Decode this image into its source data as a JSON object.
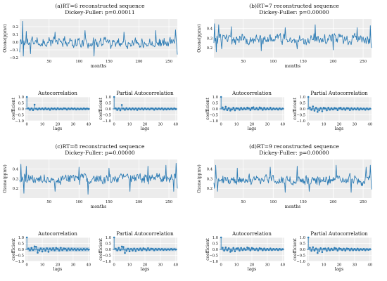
{
  "colors": {
    "line": "#2f7db5",
    "panel_bg": "#ececec",
    "grid": "#ffffff",
    "conf_band": "#aac7de",
    "zero_line": "#2f7db5"
  },
  "chart_data": [
    {
      "type": "line",
      "title": "(a)RT=6 reconstructed sequence",
      "subtitle": "Dickey-Fuller: p=0.00011",
      "xlabel": "months",
      "ylabel": "Ozone(ppmv)",
      "xlim": [
        1,
        264
      ],
      "ylim": [
        -0.2,
        0.3
      ],
      "xticks": [
        50,
        100,
        150,
        200,
        250
      ],
      "yticks": [
        -0.2,
        -0.1,
        0.0,
        0.1,
        0.2
      ],
      "ytick_labels": [
        "−0.2",
        "−0.1",
        "0.0",
        "0.1",
        "0.2"
      ],
      "seed": 11,
      "amp": 0.085,
      "extremes": [
        [
          1,
          -0.13
        ],
        [
          6,
          0.27
        ],
        [
          7,
          -0.18
        ],
        [
          12,
          0.14
        ],
        [
          19,
          -0.15
        ],
        [
          60,
          0.13
        ],
        [
          110,
          0.15
        ],
        [
          125,
          -0.18
        ],
        [
          175,
          0.13
        ],
        [
          228,
          0.15
        ],
        [
          261,
          0.16
        ],
        [
          264,
          -0.16
        ]
      ],
      "acf": {
        "title": "Autocorrelation",
        "xlabel": "lags",
        "ylabel": "coefficient",
        "xticks": [
          0,
          10,
          20,
          30,
          40
        ],
        "yticks": [
          -1.0,
          -0.5,
          0.0,
          0.5,
          1.0
        ],
        "ytick_labels": [
          "−1.0",
          "−0.5",
          "0.0",
          "0.5",
          "1.0"
        ],
        "band": 0.12,
        "values": [
          1.0,
          0.05,
          -0.08,
          0.04,
          -0.1,
          0.35,
          0.02,
          -0.06,
          0.05,
          -0.03,
          0.04,
          -0.05,
          0.06,
          -0.04,
          0.03,
          -0.08,
          0.05,
          -0.02,
          0.04,
          -0.05,
          0.06,
          -0.03,
          0.02,
          -0.04,
          0.05,
          0.03,
          -0.06,
          0.04,
          -0.03,
          0.05,
          -0.02,
          0.04,
          -0.05,
          0.03,
          -0.04,
          0.02,
          -0.03,
          0.04,
          -0.02,
          0.03,
          -0.01
        ]
      },
      "pacf": {
        "title": "Partial Autocorrelation",
        "xlabel": "lags",
        "ylabel": "coefficient",
        "xticks": [
          0,
          10,
          20,
          30,
          40
        ],
        "yticks": [
          -1.0,
          -0.5,
          0.0,
          0.5,
          1.0
        ],
        "ytick_labels": [
          "−1.0",
          "−0.5",
          "0.0",
          "0.5",
          "1.0"
        ],
        "band": 0.12,
        "values": [
          1.0,
          0.05,
          -0.09,
          0.05,
          -0.12,
          0.33,
          0.03,
          -0.08,
          0.06,
          -0.05,
          0.05,
          -0.06,
          0.05,
          -0.06,
          0.04,
          -0.09,
          0.04,
          -0.04,
          0.05,
          -0.06,
          0.05,
          -0.04,
          0.03,
          -0.05,
          0.04,
          0.03,
          -0.07,
          0.05,
          -0.04,
          0.04,
          -0.03,
          0.05,
          -0.06,
          0.03,
          -0.05,
          0.03,
          -0.04,
          0.03,
          -0.03,
          0.04,
          -0.02
        ]
      }
    },
    {
      "type": "line",
      "title": "(b)RT=7 reconstructed sequence",
      "subtitle": "Dickey-Fuller: p=0.00000",
      "xlabel": "months",
      "ylabel": "Ozone(ppmv)",
      "xlim": [
        1,
        264
      ],
      "ylim": [
        0.1,
        0.5
      ],
      "xticks": [
        50,
        100,
        150,
        200,
        250
      ],
      "yticks": [
        0.2,
        0.3,
        0.4
      ],
      "ytick_labels": [
        "0.2",
        "0.3",
        "0.4"
      ],
      "seed": 23,
      "amp": 0.07,
      "base": 0.29,
      "extremes": [
        [
          2,
          0.45
        ],
        [
          5,
          0.16
        ],
        [
          9,
          0.44
        ],
        [
          14,
          0.19
        ],
        [
          30,
          0.42
        ],
        [
          80,
          0.17
        ],
        [
          120,
          0.41
        ],
        [
          140,
          0.19
        ],
        [
          170,
          0.44
        ],
        [
          200,
          0.18
        ],
        [
          240,
          0.41
        ],
        [
          262,
          0.43
        ],
        [
          264,
          0.2
        ]
      ],
      "acf": {
        "title": "Autocorrelation",
        "xlabel": "lags",
        "ylabel": "coefficient",
        "xticks": [
          0,
          10,
          20,
          30,
          40
        ],
        "yticks": [
          -1.0,
          -0.5,
          0.0,
          0.5,
          1.0
        ],
        "ytick_labels": [
          "−1.0",
          "−0.5",
          "0.0",
          "0.5",
          "1.0"
        ],
        "band": 0.12,
        "values": [
          1.0,
          0.12,
          -0.06,
          0.18,
          -0.1,
          0.08,
          -0.14,
          -0.05,
          0.1,
          -0.12,
          0.06,
          0.04,
          -0.08,
          0.09,
          -0.05,
          0.07,
          -0.03,
          0.11,
          0.05,
          -0.09,
          0.1,
          0.14,
          -0.04,
          0.08,
          -0.06,
          0.12,
          0.07,
          -0.08,
          0.09,
          -0.05,
          0.06,
          -0.04,
          0.1,
          -0.06,
          0.05,
          -0.03,
          0.04,
          -0.06,
          0.05,
          -0.04,
          0.03
        ]
      },
      "pacf": {
        "title": "Partial Autocorrelation",
        "xlabel": "lags",
        "ylabel": "coefficient",
        "xticks": [
          0,
          10,
          20,
          30,
          40
        ],
        "yticks": [
          -1.0,
          -0.5,
          0.0,
          0.5,
          1.0
        ],
        "ytick_labels": [
          "−1.0",
          "−0.5",
          "0.0",
          "0.5",
          "1.0"
        ],
        "band": 0.12,
        "values": [
          1.0,
          0.12,
          -0.08,
          0.2,
          -0.15,
          0.1,
          -0.25,
          -0.12,
          0.08,
          -0.2,
          0.1,
          0.05,
          -0.12,
          0.1,
          -0.07,
          0.06,
          -0.05,
          0.08,
          0.04,
          -0.1,
          0.07,
          0.09,
          -0.05,
          0.06,
          -0.08,
          0.07,
          0.05,
          -0.1,
          0.06,
          -0.06,
          0.05,
          -0.05,
          0.07,
          -0.07,
          0.04,
          -0.04,
          0.03,
          -0.07,
          0.04,
          -0.05,
          0.02
        ]
      }
    },
    {
      "type": "line",
      "title": "(c)RT=8 reconstructed sequence",
      "subtitle": "Dickey-Fuller: p=0.00000",
      "xlabel": "months",
      "ylabel": "Ozone(ppmv)",
      "xlim": [
        1,
        264
      ],
      "ylim": [
        0.1,
        0.5
      ],
      "xticks": [
        50,
        100,
        150,
        200,
        250
      ],
      "yticks": [
        0.2,
        0.3,
        0.4
      ],
      "ytick_labels": [
        "0.2",
        "0.3",
        "0.4"
      ],
      "seed": 37,
      "amp": 0.065,
      "base": 0.3,
      "extremes": [
        [
          3,
          0.45
        ],
        [
          8,
          0.15
        ],
        [
          12,
          0.43
        ],
        [
          60,
          0.17
        ],
        [
          100,
          0.42
        ],
        [
          115,
          0.14
        ],
        [
          150,
          0.41
        ],
        [
          185,
          0.17
        ],
        [
          215,
          0.43
        ],
        [
          245,
          0.44
        ],
        [
          258,
          0.17
        ],
        [
          262,
          0.46
        ],
        [
          264,
          0.2
        ]
      ],
      "acf": {
        "title": "Autocorrelation",
        "xlabel": "lags",
        "ylabel": "coefficient",
        "xticks": [
          0,
          10,
          20,
          30,
          40
        ],
        "yticks": [
          -1.0,
          -0.5,
          0.0,
          0.5,
          1.0
        ],
        "ytick_labels": [
          "−1.0",
          "−0.5",
          "0.0",
          "0.5",
          "1.0"
        ],
        "band": 0.18,
        "values": [
          1.0,
          0.06,
          -0.08,
          0.12,
          -0.05,
          0.25,
          0.22,
          -0.28,
          -0.1,
          0.08,
          -0.18,
          0.05,
          -0.12,
          0.09,
          -0.2,
          0.07,
          -0.04,
          0.1,
          -0.08,
          0.12,
          0.04,
          -0.1,
          0.13,
          -0.06,
          0.08,
          0.05,
          -0.09,
          0.07,
          -0.05,
          0.06,
          -0.03,
          0.05,
          -0.06,
          0.04,
          -0.05,
          0.03,
          -0.04,
          0.05,
          -0.03,
          0.04,
          -0.02
        ]
      },
      "pacf": {
        "title": "Partial Autocorrelation",
        "xlabel": "lags",
        "ylabel": "coefficient",
        "xticks": [
          0,
          10,
          20,
          30,
          40
        ],
        "yticks": [
          -1.0,
          -0.5,
          0.0,
          0.5,
          1.0
        ],
        "ytick_labels": [
          "−1.0",
          "−0.5",
          "0.0",
          "0.5",
          "1.0"
        ],
        "band": 0.14,
        "values": [
          1.0,
          0.06,
          -0.09,
          0.13,
          -0.06,
          0.24,
          0.2,
          -0.3,
          -0.12,
          0.06,
          -0.16,
          0.04,
          -0.1,
          0.07,
          -0.14,
          0.05,
          -0.05,
          0.08,
          -0.07,
          0.09,
          0.03,
          -0.08,
          0.1,
          -0.05,
          0.06,
          0.04,
          -0.08,
          0.05,
          -0.04,
          0.05,
          -0.03,
          0.04,
          -0.05,
          0.03,
          -0.04,
          0.02,
          -0.03,
          0.04,
          -0.02,
          0.03,
          -0.01
        ]
      }
    },
    {
      "type": "line",
      "title": "(d)RT=9 reconstructed sequence",
      "subtitle": "Dickey-Fuller: p=0.00000",
      "xlabel": "months",
      "ylabel": "Ozone(ppmv)",
      "xlim": [
        1,
        264
      ],
      "ylim": [
        0.1,
        0.5
      ],
      "xticks": [
        50,
        100,
        150,
        200,
        250
      ],
      "yticks": [
        0.2,
        0.3,
        0.4
      ],
      "ytick_labels": [
        "0.2",
        "0.3",
        "0.4"
      ],
      "seed": 51,
      "amp": 0.065,
      "base": 0.29,
      "extremes": [
        [
          2,
          0.2
        ],
        [
          4,
          0.44
        ],
        [
          7,
          0.17
        ],
        [
          40,
          0.41
        ],
        [
          95,
          0.42
        ],
        [
          120,
          0.16
        ],
        [
          140,
          0.43
        ],
        [
          160,
          0.17
        ],
        [
          205,
          0.44
        ],
        [
          230,
          0.16
        ],
        [
          255,
          0.42
        ],
        [
          262,
          0.44
        ],
        [
          264,
          0.19
        ]
      ],
      "acf": {
        "title": "Autocorrelation",
        "xlabel": "lags",
        "ylabel": "coefficient",
        "xticks": [
          0,
          10,
          20,
          30,
          40
        ],
        "yticks": [
          -1.0,
          -0.5,
          0.0,
          0.5,
          1.0
        ],
        "ytick_labels": [
          "−1.0",
          "−0.5",
          "0.0",
          "0.5",
          "1.0"
        ],
        "band": 0.12,
        "values": [
          1.0,
          0.14,
          -0.1,
          0.16,
          -0.08,
          0.1,
          -0.2,
          -0.12,
          0.12,
          -0.16,
          0.08,
          0.1,
          -0.1,
          0.12,
          -0.06,
          0.08,
          -0.04,
          0.16,
          0.1,
          -0.08,
          0.12,
          0.06,
          -0.05,
          0.07,
          -0.09,
          0.1,
          0.06,
          -0.07,
          0.08,
          -0.06,
          0.05,
          -0.05,
          0.08,
          -0.06,
          0.04,
          -0.03,
          0.05,
          -0.06,
          0.04,
          -0.03,
          0.02
        ]
      },
      "pacf": {
        "title": "Partial Autocorrelation",
        "xlabel": "lags",
        "ylabel": "coefficient",
        "xticks": [
          0,
          10,
          20,
          30,
          40
        ],
        "yticks": [
          -1.0,
          -0.5,
          0.0,
          0.5,
          1.0
        ],
        "ytick_labels": [
          "−1.0",
          "−0.5",
          "0.0",
          "0.5",
          "1.0"
        ],
        "band": 0.12,
        "values": [
          1.0,
          0.14,
          -0.12,
          0.18,
          -0.1,
          0.08,
          -0.3,
          -0.14,
          0.1,
          -0.22,
          0.06,
          0.08,
          -0.12,
          0.1,
          -0.08,
          0.06,
          -0.05,
          0.12,
          0.08,
          -0.1,
          0.09,
          0.05,
          -0.06,
          0.06,
          -0.1,
          0.08,
          0.05,
          -0.08,
          0.06,
          -0.07,
          0.04,
          -0.06,
          0.06,
          -0.07,
          0.03,
          -0.04,
          0.04,
          -0.07,
          0.03,
          -0.04,
          0.02
        ]
      }
    }
  ]
}
